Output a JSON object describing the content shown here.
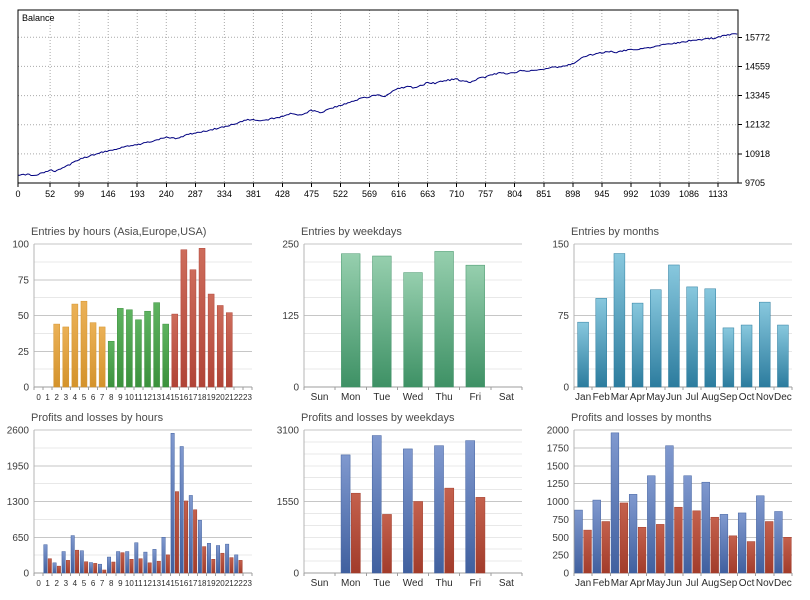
{
  "palette": {
    "orange": {
      "top": "#ebb157",
      "bottom": "#d4932c"
    },
    "green": {
      "top": "#5eb360",
      "bottom": "#3c913d"
    },
    "brick": {
      "top": "#cd6c5b",
      "bottom": "#b04437"
    },
    "weekgreen": {
      "top": "#96cfae",
      "bottom": "#3e9165"
    },
    "teal": {
      "top": "#88c8de",
      "bottom": "#2c7c9e"
    },
    "plblue": {
      "top": "#8099cf",
      "bottom": "#40609f"
    },
    "plred": {
      "top": "#c4614d",
      "bottom": "#a23c2b"
    }
  },
  "chart_data": [
    {
      "type": "line",
      "legend_label": "Balance",
      "line_color": "#000080",
      "grid_color": "#a9a9a9",
      "border_color": "#000000",
      "x_ticks": [
        0,
        52,
        99,
        146,
        193,
        240,
        287,
        334,
        381,
        428,
        475,
        522,
        569,
        616,
        663,
        710,
        757,
        804,
        851,
        898,
        945,
        992,
        1039,
        1086,
        1133
      ],
      "y_ticks": [
        9705,
        10918,
        12132,
        13345,
        14559,
        15772
      ],
      "y_axis_min": 9705,
      "x_max": 1165,
      "keypoints": [
        [
          0,
          10010
        ],
        [
          15,
          10060
        ],
        [
          28,
          10020
        ],
        [
          40,
          10120
        ],
        [
          52,
          10245
        ],
        [
          60,
          10180
        ],
        [
          75,
          10350
        ],
        [
          99,
          10690
        ],
        [
          120,
          10870
        ],
        [
          146,
          11050
        ],
        [
          170,
          11200
        ],
        [
          193,
          11290
        ],
        [
          215,
          11430
        ],
        [
          240,
          11610
        ],
        [
          255,
          11550
        ],
        [
          270,
          11680
        ],
        [
          287,
          11800
        ],
        [
          310,
          11900
        ],
        [
          334,
          12050
        ],
        [
          355,
          12200
        ],
        [
          370,
          12320
        ],
        [
          381,
          12360
        ],
        [
          395,
          12280
        ],
        [
          410,
          12380
        ],
        [
          428,
          12470
        ],
        [
          442,
          12600
        ],
        [
          455,
          12520
        ],
        [
          468,
          12640
        ],
        [
          475,
          12740
        ],
        [
          490,
          12620
        ],
        [
          505,
          12800
        ],
        [
          522,
          12950
        ],
        [
          540,
          13080
        ],
        [
          555,
          13220
        ],
        [
          569,
          13300
        ],
        [
          582,
          13380
        ],
        [
          594,
          13330
        ],
        [
          605,
          13500
        ],
        [
          616,
          13650
        ],
        [
          630,
          13720
        ],
        [
          642,
          13670
        ],
        [
          655,
          13780
        ],
        [
          663,
          13890
        ],
        [
          675,
          13860
        ],
        [
          688,
          13960
        ],
        [
          700,
          14000
        ],
        [
          710,
          14030
        ],
        [
          722,
          13930
        ],
        [
          733,
          13900
        ],
        [
          745,
          14060
        ],
        [
          757,
          14110
        ],
        [
          770,
          14230
        ],
        [
          782,
          14300
        ],
        [
          793,
          14250
        ],
        [
          804,
          14300
        ],
        [
          816,
          14400
        ],
        [
          828,
          14360
        ],
        [
          840,
          14420
        ],
        [
          851,
          14440
        ],
        [
          863,
          14540
        ],
        [
          875,
          14520
        ],
        [
          886,
          14590
        ],
        [
          898,
          14660
        ],
        [
          908,
          14850
        ],
        [
          918,
          14980
        ],
        [
          930,
          15050
        ],
        [
          945,
          15130
        ],
        [
          958,
          15170
        ],
        [
          970,
          15150
        ],
        [
          982,
          15230
        ],
        [
          992,
          15270
        ],
        [
          1008,
          15280
        ],
        [
          1024,
          15340
        ],
        [
          1039,
          15450
        ],
        [
          1055,
          15500
        ],
        [
          1070,
          15540
        ],
        [
          1086,
          15630
        ],
        [
          1100,
          15670
        ],
        [
          1114,
          15700
        ],
        [
          1126,
          15740
        ],
        [
          1133,
          15780
        ],
        [
          1147,
          15860
        ],
        [
          1165,
          15930
        ]
      ]
    },
    {
      "type": "bar",
      "title": "Entries by hours (Asia,Europe,USA)",
      "categories": [
        "0",
        "1",
        "2",
        "3",
        "4",
        "5",
        "6",
        "7",
        "8",
        "9",
        "10",
        "11",
        "12",
        "13",
        "14",
        "15",
        "16",
        "17",
        "18",
        "19",
        "20",
        "21",
        "22",
        "23"
      ],
      "y_ticks": [
        0,
        25,
        50,
        75,
        100
      ],
      "y_max": 100,
      "minor_divisions": 8,
      "label_font": 8,
      "bar_colors": [
        "none",
        "none",
        "orange",
        "orange",
        "orange",
        "orange",
        "orange",
        "orange",
        "green",
        "green",
        "green",
        "green",
        "green",
        "green",
        "green",
        "brick",
        "brick",
        "brick",
        "brick",
        "brick",
        "brick",
        "brick",
        "none",
        "none"
      ],
      "series": [
        {
          "name": "entries",
          "values": [
            0,
            0,
            44,
            42,
            58,
            60,
            45,
            42,
            32,
            55,
            54,
            47,
            53,
            59,
            44,
            51,
            96,
            82,
            97,
            65,
            57,
            52,
            0,
            0
          ]
        }
      ]
    },
    {
      "type": "bar",
      "title": "Entries by weekdays",
      "categories": [
        "Sun",
        "Mon",
        "Tue",
        "Wed",
        "Thu",
        "Fri",
        "Sat"
      ],
      "y_ticks": [
        0,
        125,
        250
      ],
      "y_max": 250,
      "minor_divisions": 8,
      "label_font": 10,
      "series": [
        {
          "name": "entries",
          "color": "weekgreen",
          "values": [
            0,
            233,
            229,
            200,
            237,
            213,
            0
          ]
        }
      ]
    },
    {
      "type": "bar",
      "title": "Entries by months",
      "categories": [
        "Jan",
        "Feb",
        "Mar",
        "Apr",
        "May",
        "Jun",
        "Jul",
        "Aug",
        "Sep",
        "Oct",
        "Nov",
        "Dec"
      ],
      "y_ticks": [
        0,
        75,
        150
      ],
      "y_max": 150,
      "minor_divisions": 8,
      "label_font": 10,
      "series": [
        {
          "name": "entries",
          "color": "teal",
          "values": [
            68,
            93,
            140,
            88,
            102,
            128,
            105,
            103,
            62,
            65,
            89,
            65
          ]
        }
      ]
    },
    {
      "type": "bar",
      "title": "Profits and losses by hours",
      "categories": [
        "0",
        "1",
        "2",
        "3",
        "4",
        "5",
        "6",
        "7",
        "8",
        "9",
        "10",
        "11",
        "12",
        "13",
        "14",
        "15",
        "16",
        "17",
        "18",
        "19",
        "20",
        "21",
        "22",
        "23"
      ],
      "y_ticks": [
        0,
        650,
        1300,
        1950,
        2600
      ],
      "y_max": 2600,
      "minor_divisions": 8,
      "label_font": 8,
      "series": [
        {
          "name": "profit",
          "color": "plblue",
          "values": [
            0,
            515,
            185,
            390,
            680,
            405,
            190,
            160,
            290,
            390,
            390,
            550,
            380,
            430,
            650,
            2540,
            2300,
            1410,
            960,
            540,
            500,
            525,
            330,
            0
          ]
        },
        {
          "name": "loss",
          "color": "plred",
          "values": [
            0,
            260,
            125,
            230,
            415,
            205,
            175,
            55,
            200,
            370,
            250,
            260,
            185,
            215,
            330,
            1480,
            1310,
            1150,
            480,
            250,
            360,
            280,
            230,
            0
          ]
        }
      ]
    },
    {
      "type": "bar",
      "title": "Profits and losses by weekdays",
      "categories": [
        "Sun",
        "Mon",
        "Tue",
        "Wed",
        "Thu",
        "Fri",
        "Sat"
      ],
      "y_ticks": [
        0,
        1550,
        3100
      ],
      "y_max": 3100,
      "minor_divisions": 12,
      "label_font": 10,
      "series": [
        {
          "name": "profit",
          "color": "plblue",
          "values": [
            0,
            2560,
            2980,
            2690,
            2760,
            2870,
            0
          ]
        },
        {
          "name": "loss",
          "color": "plred",
          "values": [
            0,
            1730,
            1270,
            1550,
            1840,
            1640,
            0
          ]
        }
      ]
    },
    {
      "type": "bar",
      "title": "Profits and losses by months",
      "categories": [
        "Jan",
        "Feb",
        "Mar",
        "Apr",
        "May",
        "Jun",
        "Jul",
        "Aug",
        "Sep",
        "Oct",
        "Nov",
        "Dec"
      ],
      "y_ticks": [
        0,
        250,
        500,
        750,
        1000,
        1250,
        1500,
        1750,
        2000
      ],
      "y_max": 2000,
      "minor_divisions": 8,
      "label_font": 10,
      "series": [
        {
          "name": "profit",
          "color": "plblue",
          "values": [
            880,
            1020,
            1960,
            1100,
            1360,
            1780,
            1360,
            1270,
            820,
            840,
            1080,
            860
          ]
        },
        {
          "name": "loss",
          "color": "plred",
          "values": [
            600,
            720,
            980,
            640,
            680,
            920,
            870,
            780,
            520,
            440,
            720,
            500
          ]
        }
      ]
    }
  ]
}
